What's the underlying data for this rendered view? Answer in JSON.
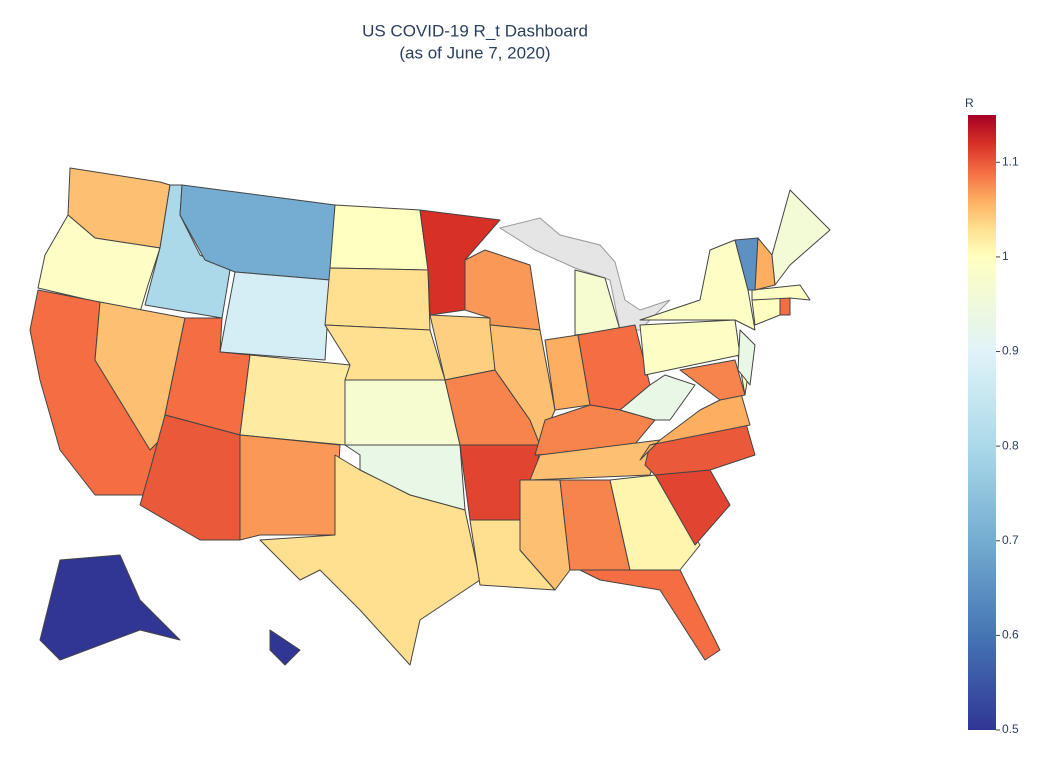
{
  "chart_data": {
    "type": "choropleth",
    "title": "US COVID-19 R_t Dashboard",
    "subtitle": "(as of June 7, 2020)",
    "colorbar_title": "R",
    "locations": [
      "WA",
      "OR",
      "CA",
      "NV",
      "ID",
      "MT",
      "WY",
      "UT",
      "AZ",
      "CO",
      "NM",
      "ND",
      "SD",
      "NE",
      "KS",
      "OK",
      "TX",
      "MN",
      "IA",
      "MO",
      "AR",
      "LA",
      "WI",
      "IL",
      "MI",
      "IN",
      "OH",
      "KY",
      "TN",
      "MS",
      "AL",
      "GA",
      "FL",
      "SC",
      "NC",
      "VA",
      "WV",
      "MD",
      "DE",
      "PA",
      "NJ",
      "NY",
      "CT",
      "RI",
      "MA",
      "VT",
      "NH",
      "ME",
      "AK",
      "HI"
    ],
    "values": [
      1.05,
      0.99,
      1.09,
      1.05,
      0.8,
      0.7,
      0.88,
      1.09,
      1.1,
      1.02,
      1.07,
      1.0,
      1.03,
      1.03,
      0.97,
      0.93,
      1.03,
      1.12,
      1.04,
      1.08,
      1.11,
      1.03,
      1.07,
      1.05,
      0.97,
      1.06,
      1.09,
      1.08,
      1.05,
      1.05,
      1.08,
      1.01,
      1.09,
      1.11,
      1.1,
      1.06,
      0.93,
      1.08,
      1.0,
      0.99,
      0.93,
      0.99,
      1.0,
      1.09,
      0.99,
      0.65,
      1.06,
      0.96,
      0.5,
      0.5
    ],
    "zlim": [
      0.5,
      1.15
    ],
    "zmid": 1,
    "zticks": [
      0.5,
      0.6,
      0.7,
      0.8,
      0.9,
      1,
      1.1
    ],
    "colorscale": [
      "#313695",
      "#4575b4",
      "#74add1",
      "#abd9e9",
      "#e0f3f8",
      "#ffffbf",
      "#fee090",
      "#fdae61",
      "#f46d43",
      "#d73027",
      "#a50026"
    ]
  }
}
